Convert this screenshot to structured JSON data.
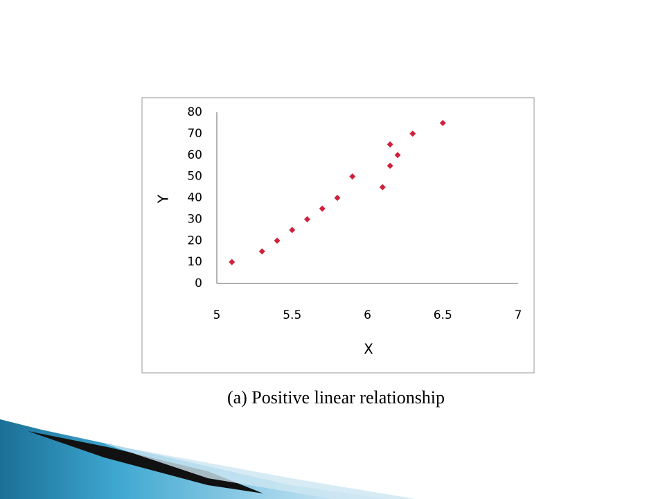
{
  "chart_data": {
    "type": "scatter",
    "x_label": "X",
    "y_label": "Y",
    "caption": "(a) Positive linear relationship",
    "x": [
      5.1,
      5.3,
      5.4,
      5.5,
      5.6,
      5.7,
      5.8,
      5.9,
      6.1,
      6.15,
      6.15,
      6.2,
      6.3,
      6.5
    ],
    "y": [
      10,
      15,
      20,
      25,
      30,
      35,
      40,
      50,
      45,
      55,
      65,
      60,
      70,
      75
    ],
    "color": "#d0213c",
    "xlim": [
      5,
      7
    ],
    "xticks": [
      5,
      5.5,
      6,
      6.5,
      7
    ],
    "ylim": [
      0,
      80
    ],
    "yticks": [
      0,
      10,
      20,
      30,
      40,
      50,
      60,
      70,
      80
    ],
    "grid": false
  }
}
